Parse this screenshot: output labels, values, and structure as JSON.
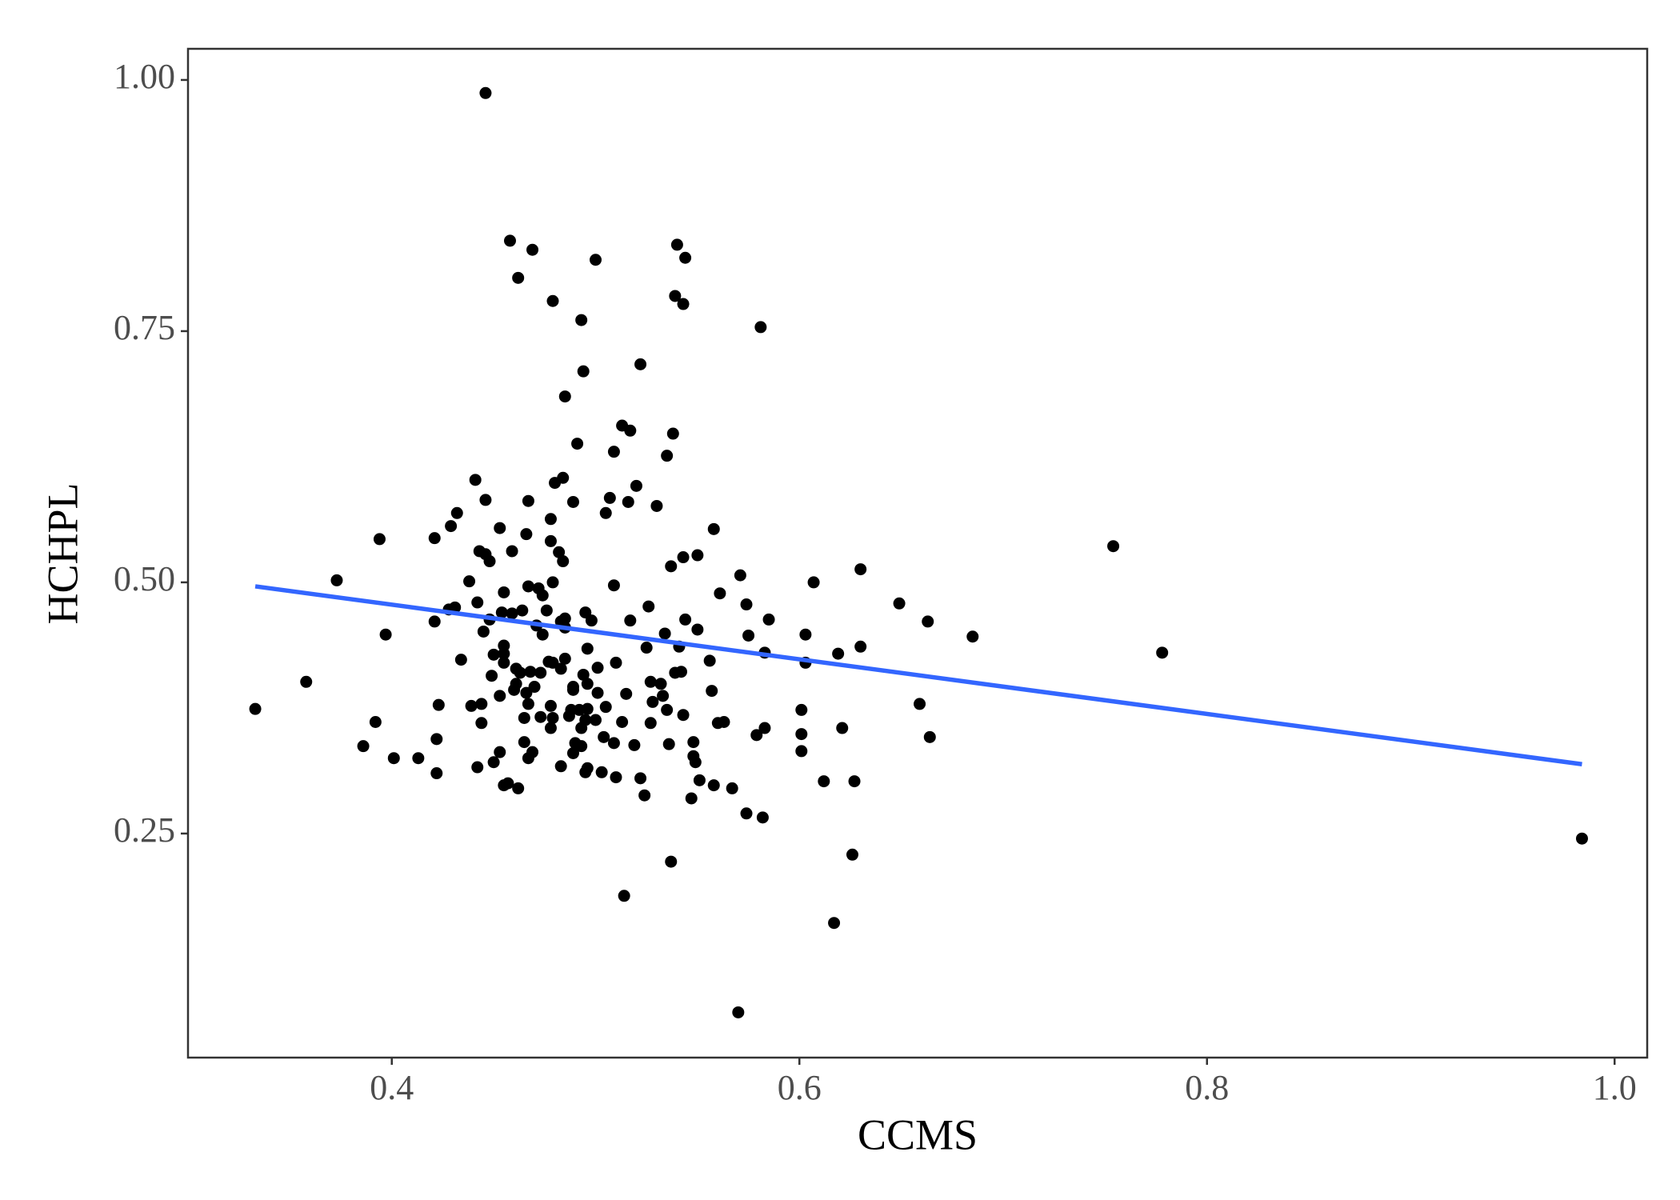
{
  "chart_data": {
    "type": "scatter",
    "x_label": "CCMS",
    "y_label": "HCHPL",
    "color": "#000000",
    "xlim": [
      0.3,
      1.016
    ],
    "ylim": [
      0.027,
      1.031
    ],
    "xticks": [
      0.4,
      0.6,
      0.8,
      {
        "value": 1,
        "label": "1.0"
      }
    ],
    "yticks": [
      {
        "value": 0.25,
        "label": "0.25"
      },
      {
        "value": 0.5,
        "label": "0.50"
      },
      0.75,
      {
        "value": 1,
        "label": "1.00"
      }
    ],
    "x": [
      0.446,
      0.458,
      0.469,
      0.5,
      0.54,
      0.544,
      0.462,
      0.479,
      0.539,
      0.543,
      0.493,
      0.581,
      0.522,
      0.494,
      0.485,
      0.513,
      0.517,
      0.538,
      0.509,
      0.535,
      0.491,
      0.441,
      0.484,
      0.48,
      0.52,
      0.446,
      0.467,
      0.489,
      0.507,
      0.53,
      0.432,
      0.429,
      0.478,
      0.394,
      0.421,
      0.453,
      0.466,
      0.478,
      0.482,
      0.505,
      0.558,
      0.443,
      0.446,
      0.448,
      0.459,
      0.484,
      0.543,
      0.537,
      0.55,
      0.63,
      0.754,
      0.373,
      0.438,
      0.479,
      0.509,
      0.571,
      0.607,
      0.467,
      0.455,
      0.442,
      0.431,
      0.428,
      0.526,
      0.561,
      0.474,
      0.459,
      0.464,
      0.476,
      0.448,
      0.421,
      0.495,
      0.498,
      0.485,
      0.517,
      0.544,
      0.585,
      0.649,
      0.663,
      0.483,
      0.397,
      0.445,
      0.471,
      0.485,
      0.534,
      0.55,
      0.574,
      0.603,
      0.685,
      0.575,
      0.541,
      0.496,
      0.525,
      0.778,
      0.45,
      0.455,
      0.434,
      0.455,
      0.477,
      0.479,
      0.485,
      0.51,
      0.556,
      0.583,
      0.603,
      0.619,
      0.63,
      0.461,
      0.473,
      0.483,
      0.494,
      0.501,
      0.539,
      0.542,
      0.461,
      0.47,
      0.496,
      0.527,
      0.532,
      0.557,
      0.466,
      0.489,
      0.46,
      0.453,
      0.515,
      0.501,
      0.533,
      0.423,
      0.444,
      0.492,
      0.496,
      0.439,
      0.478,
      0.488,
      0.505,
      0.528,
      0.535,
      0.601,
      0.659,
      0.333,
      0.358,
      0.392,
      0.444,
      0.465,
      0.473,
      0.487,
      0.5,
      0.56,
      0.563,
      0.479,
      0.527,
      0.543,
      0.583,
      0.621,
      0.513,
      0.422,
      0.386,
      0.465,
      0.478,
      0.504,
      0.519,
      0.579,
      0.601,
      0.664,
      0.509,
      0.536,
      0.548,
      0.401,
      0.413,
      0.469,
      0.489,
      0.493,
      0.548,
      0.601,
      0.45,
      0.442,
      0.467,
      0.483,
      0.496,
      0.495,
      0.422,
      0.549,
      0.457,
      0.455,
      0.462,
      0.51,
      0.522,
      0.551,
      0.558,
      0.567,
      0.612,
      0.627,
      0.524,
      0.547,
      0.574,
      0.582,
      0.626,
      0.537,
      0.984,
      0.514,
      0.617,
      0.57,
      0.468,
      0.467,
      0.49,
      0.453,
      0.489,
      0.503,
      0.454,
      0.463,
      0.495,
      0.493,
      0.472,
      0.455,
      0.474,
      0.449,
      0.516
    ],
    "values": [
      0.987,
      0.84,
      0.831,
      0.821,
      0.836,
      0.823,
      0.803,
      0.78,
      0.785,
      0.777,
      0.761,
      0.754,
      0.717,
      0.71,
      0.685,
      0.656,
      0.651,
      0.648,
      0.63,
      0.626,
      0.638,
      0.602,
      0.604,
      0.599,
      0.596,
      0.582,
      0.581,
      0.58,
      0.584,
      0.576,
      0.569,
      0.556,
      0.563,
      0.543,
      0.544,
      0.554,
      0.548,
      0.541,
      0.53,
      0.569,
      0.553,
      0.531,
      0.528,
      0.521,
      0.531,
      0.521,
      0.525,
      0.516,
      0.527,
      0.513,
      0.536,
      0.502,
      0.501,
      0.5,
      0.497,
      0.507,
      0.5,
      0.496,
      0.49,
      0.48,
      0.475,
      0.473,
      0.476,
      0.489,
      0.487,
      0.469,
      0.472,
      0.472,
      0.463,
      0.461,
      0.47,
      0.462,
      0.464,
      0.462,
      0.463,
      0.463,
      0.479,
      0.461,
      0.461,
      0.448,
      0.451,
      0.457,
      0.455,
      0.449,
      0.453,
      0.478,
      0.448,
      0.446,
      0.447,
      0.436,
      0.434,
      0.435,
      0.43,
      0.428,
      0.429,
      0.423,
      0.42,
      0.421,
      0.42,
      0.424,
      0.42,
      0.422,
      0.43,
      0.42,
      0.429,
      0.436,
      0.414,
      0.41,
      0.414,
      0.408,
      0.415,
      0.41,
      0.411,
      0.399,
      0.396,
      0.399,
      0.401,
      0.399,
      0.392,
      0.39,
      0.396,
      0.393,
      0.387,
      0.389,
      0.39,
      0.387,
      0.378,
      0.379,
      0.373,
      0.374,
      0.377,
      0.377,
      0.373,
      0.376,
      0.381,
      0.373,
      0.373,
      0.379,
      0.374,
      0.401,
      0.361,
      0.36,
      0.365,
      0.366,
      0.367,
      0.363,
      0.36,
      0.361,
      0.365,
      0.36,
      0.368,
      0.355,
      0.355,
      0.361,
      0.344,
      0.337,
      0.341,
      0.355,
      0.346,
      0.338,
      0.348,
      0.349,
      0.346,
      0.34,
      0.339,
      0.341,
      0.325,
      0.325,
      0.331,
      0.33,
      0.337,
      0.327,
      0.332,
      0.321,
      0.316,
      0.325,
      0.317,
      0.315,
      0.311,
      0.31,
      0.321,
      0.3,
      0.298,
      0.295,
      0.306,
      0.305,
      0.303,
      0.298,
      0.295,
      0.302,
      0.302,
      0.288,
      0.285,
      0.27,
      0.266,
      0.229,
      0.222,
      0.245,
      0.188,
      0.161,
      0.072,
      0.411,
      0.379,
      0.34,
      0.331,
      0.393,
      0.311,
      0.47,
      0.41,
      0.363,
      0.355,
      0.494,
      0.437,
      0.448,
      0.407,
      0.58
    ],
    "fit": {
      "color": "#3366ff",
      "x": [
        0.333,
        0.984
      ],
      "values": [
        0.496,
        0.319
      ]
    }
  }
}
